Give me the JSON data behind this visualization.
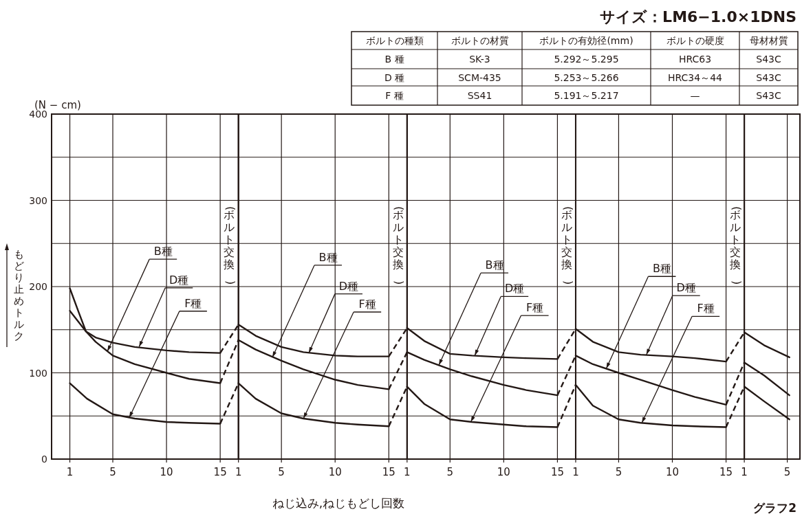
{
  "chart_data": [
    {
      "type": "line",
      "ylabel": "もどり止めトルク",
      "xlim": [
        -0.7,
        16.7
      ],
      "ylim": [
        0,
        400
      ],
      "xticks": [
        1,
        5,
        10,
        15
      ],
      "yticks": [
        0,
        {
          "value": 50,
          "label": null
        },
        100,
        {
          "value": 150,
          "label": null
        },
        200,
        {
          "value": 250,
          "label": null
        },
        300,
        {
          "value": 350,
          "label": null
        },
        400
      ],
      "grid": true,
      "series": [
        {
          "color": "#231815",
          "x": [
            1,
            1.8,
            2.5,
            3.4,
            5,
            7.04,
            10,
            12.1,
            15
          ],
          "values": [
            198,
            171,
            148,
            136,
            120,
            110,
            100,
            93,
            88
          ]
        },
        {
          "color": "#231815",
          "x": [
            1,
            2.5,
            3.4,
            5,
            7.04,
            10,
            12.1,
            15
          ],
          "values": [
            172,
            148,
            141,
            135,
            130,
            126,
            124,
            123
          ]
        },
        {
          "color": "#231815",
          "x": [
            1,
            2.6,
            5,
            7.04,
            10,
            12.1,
            15
          ],
          "values": [
            88,
            70,
            52,
            47,
            43,
            42,
            41
          ]
        },
        {
          "color": "#231815",
          "line_style": "dashed",
          "x": [
            15,
            16.7
          ],
          "values": [
            88,
            138
          ]
        },
        {
          "color": "#231815",
          "line_style": "dashed",
          "x": [
            15,
            16.7
          ],
          "values": [
            123,
            156
          ]
        },
        {
          "color": "#231815",
          "line_style": "dashed",
          "x": [
            15,
            16.7
          ],
          "values": [
            41,
            88
          ]
        }
      ],
      "annotations": [
        {
          "text": "B種",
          "x": 4.5,
          "y": 125
        },
        {
          "text": "D種",
          "x": 7.45,
          "y": 130
        },
        {
          "text": "F種",
          "x": 6.53,
          "y": 48
        },
        "(ボルト交換)",
        "(N − cm)",
        "グラフ2"
      ]
    },
    {
      "type": "line",
      "xlim": [
        1,
        16.7
      ],
      "ylim": [
        0,
        400
      ],
      "xticks": [
        1,
        5,
        10,
        15
      ],
      "yticks": [
        0,
        {
          "value": 50,
          "label": null
        },
        100,
        {
          "value": 150,
          "label": null
        },
        200,
        {
          "value": 250,
          "label": null
        },
        300,
        {
          "value": 350,
          "label": null
        },
        400
      ],
      "grid": true,
      "tick_labels": "x",
      "series": [
        {
          "color": "#231815",
          "x": [
            1,
            2.6,
            5,
            7.04,
            10,
            12.1,
            15
          ],
          "values": [
            138,
            127,
            114,
            104,
            92,
            86,
            81
          ]
        },
        {
          "color": "#231815",
          "x": [
            1,
            2.6,
            5,
            7.04,
            10,
            12.1,
            15
          ],
          "values": [
            156,
            143,
            130,
            124,
            120,
            119,
            119
          ]
        },
        {
          "color": "#231815",
          "x": [
            1,
            2.6,
            5,
            7.04,
            10,
            12.1,
            15
          ],
          "values": [
            88,
            70,
            53,
            47,
            42,
            40,
            38
          ]
        },
        {
          "color": "#231815",
          "line_style": "dashed",
          "x": [
            15,
            16.7
          ],
          "values": [
            81,
            124
          ]
        },
        {
          "color": "#231815",
          "line_style": "dashed",
          "x": [
            15,
            16.7
          ],
          "values": [
            119,
            152
          ]
        },
        {
          "color": "#231815",
          "line_style": "dashed",
          "x": [
            15,
            16.7
          ],
          "values": [
            38,
            84
          ]
        }
      ],
      "xlabel": "ねじ込み,ねじもどし回数",
      "annotations": [
        {
          "text": "B種",
          "x": 4.16,
          "y": 118
        },
        {
          "text": "D種",
          "x": 7.55,
          "y": 123
        },
        {
          "text": "F種",
          "x": 7.05,
          "y": 47
        },
        "(ボルト交換)"
      ]
    },
    {
      "type": "line",
      "xlim": [
        1,
        16.7
      ],
      "ylim": [
        0,
        400
      ],
      "xticks": [
        1,
        5,
        10,
        15
      ],
      "yticks": [
        0,
        {
          "value": 50,
          "label": null
        },
        100,
        {
          "value": 150,
          "label": null
        },
        200,
        {
          "value": 250,
          "label": null
        },
        300,
        {
          "value": 350,
          "label": null
        },
        400
      ],
      "grid": true,
      "tick_labels": "x",
      "series": [
        {
          "color": "#231815",
          "x": [
            1,
            2.6,
            5,
            7.04,
            10,
            12.1,
            15
          ],
          "values": [
            124,
            115,
            104,
            96,
            86,
            80,
            74
          ]
        },
        {
          "color": "#231815",
          "x": [
            1,
            2.6,
            5,
            7.04,
            10,
            12.1,
            15
          ],
          "values": [
            152,
            137,
            122,
            120,
            118,
            117,
            116
          ]
        },
        {
          "color": "#231815",
          "x": [
            1,
            2.6,
            5,
            7.04,
            10,
            12.1,
            15
          ],
          "values": [
            84,
            64,
            46,
            43,
            40,
            38,
            37
          ]
        },
        {
          "color": "#231815",
          "line_style": "dashed",
          "x": [
            15,
            16.7
          ],
          "values": [
            74,
            120
          ]
        },
        {
          "color": "#231815",
          "line_style": "dashed",
          "x": [
            15,
            16.7
          ],
          "values": [
            116,
            151
          ]
        },
        {
          "color": "#231815",
          "line_style": "dashed",
          "x": [
            15,
            16.7
          ],
          "values": [
            37,
            86
          ]
        }
      ],
      "annotations": [
        {
          "text": "B種",
          "x": 3.96,
          "y": 109
        },
        {
          "text": "D種",
          "x": 7.3,
          "y": 120
        },
        {
          "text": "F種",
          "x": 6.94,
          "y": 43
        },
        "(ボルト交換)"
      ]
    },
    {
      "type": "line",
      "xlim": [
        1,
        16.7
      ],
      "ylim": [
        0,
        400
      ],
      "xticks": [
        1,
        5,
        10,
        15
      ],
      "yticks": [
        0,
        {
          "value": 50,
          "label": null
        },
        100,
        {
          "value": 150,
          "label": null
        },
        200,
        {
          "value": 250,
          "label": null
        },
        300,
        {
          "value": 350,
          "label": null
        },
        400
      ],
      "grid": true,
      "tick_labels": "x",
      "series": [
        {
          "color": "#231815",
          "x": [
            1,
            2.6,
            5,
            7.04,
            10,
            12.1,
            15
          ],
          "values": [
            120,
            110,
            100,
            92,
            80,
            72,
            63
          ]
        },
        {
          "color": "#231815",
          "x": [
            1,
            2.6,
            5,
            7.04,
            10,
            12.1,
            15
          ],
          "values": [
            151,
            136,
            124,
            121,
            119,
            117,
            113
          ]
        },
        {
          "color": "#231815",
          "x": [
            1,
            2.6,
            5,
            7.04,
            10,
            12.1,
            15
          ],
          "values": [
            86,
            62,
            46,
            42,
            39,
            38,
            37
          ]
        },
        {
          "color": "#231815",
          "line_style": "dashed",
          "x": [
            15,
            16.7
          ],
          "values": [
            63,
            112
          ]
        },
        {
          "color": "#231815",
          "line_style": "dashed",
          "x": [
            15,
            16.7
          ],
          "values": [
            113,
            147
          ]
        },
        {
          "color": "#231815",
          "line_style": "dashed",
          "x": [
            15,
            16.7
          ],
          "values": [
            37,
            84
          ]
        }
      ],
      "annotations": [
        {
          "text": "B種",
          "x": 3.85,
          "y": 105
        },
        {
          "text": "D種",
          "x": 7.58,
          "y": 121
        },
        {
          "text": "F種",
          "x": 7.16,
          "y": 42
        },
        "(ボルト交換)"
      ]
    },
    {
      "type": "line",
      "xlim": [
        1,
        6.18
      ],
      "ylim": [
        0,
        400
      ],
      "xticks": [
        1,
        5
      ],
      "yticks": [
        0,
        {
          "value": 50,
          "label": null
        },
        100,
        {
          "value": 150,
          "label": null
        },
        200,
        {
          "value": 250,
          "label": null
        },
        300,
        {
          "value": 350,
          "label": null
        },
        400
      ],
      "grid": true,
      "tick_labels": "x",
      "series": [
        {
          "color": "#231815",
          "x": [
            1,
            2.84,
            5.2
          ],
          "values": [
            112,
            97,
            74
          ]
        },
        {
          "color": "#231815",
          "x": [
            1,
            2.84,
            5.2
          ],
          "values": [
            147,
            132,
            118
          ]
        },
        {
          "color": "#231815",
          "x": [
            1,
            2.84,
            5.2
          ],
          "values": [
            84,
            67,
            46
          ]
        }
      ]
    },
    {
      "type": "other",
      "title": "サイズ：LM6−1.0×1DNS",
      "categories": [
        "ボルトの種類",
        "ボルトの材質",
        "ボルトの有効径(mm)",
        "ボルトの硬度",
        "母材材質"
      ],
      "cells": [
        [
          "B 種",
          "SK-3",
          "5.292～5.295",
          "HRC63",
          "S43C"
        ],
        [
          "D 種",
          "SCM-435",
          "5.253～5.266",
          "HRC34～44",
          "S43C"
        ],
        [
          "F 種",
          "SS41",
          "5.191～5.217",
          "—",
          "S43C"
        ]
      ]
    }
  ]
}
